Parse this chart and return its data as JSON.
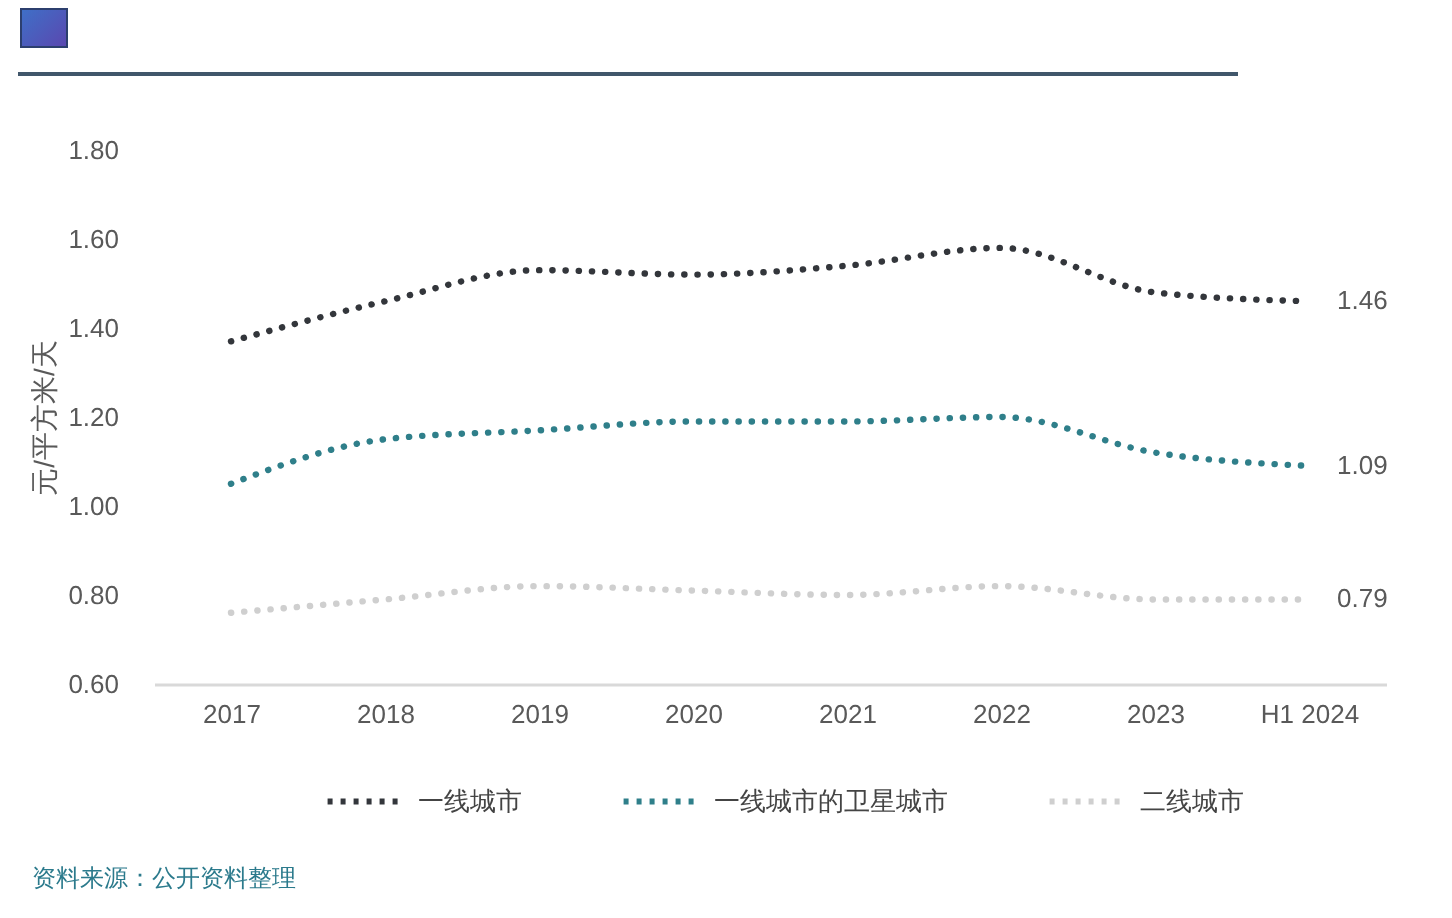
{
  "chart_data": {
    "type": "line",
    "ylabel": "元/平方米/天",
    "categories": [
      "2017",
      "2018",
      "2019",
      "2020",
      "2021",
      "2022",
      "2023",
      "H1 2024"
    ],
    "series": [
      {
        "name": "一线城市",
        "color": "#33363b",
        "values": [
          1.37,
          1.46,
          1.53,
          1.52,
          1.54,
          1.58,
          1.48,
          1.46
        ],
        "value_labels": [
          null,
          null,
          null,
          null,
          null,
          null,
          null,
          "1.46"
        ]
      },
      {
        "name": "一线城市的卫星城市",
        "color": "#2f7f8a",
        "values": [
          1.05,
          1.15,
          1.17,
          1.19,
          1.19,
          1.2,
          1.12,
          1.09
        ],
        "value_labels": [
          null,
          null,
          null,
          null,
          null,
          null,
          null,
          "1.09"
        ]
      },
      {
        "name": "二线城市",
        "color": "#cfcfcf",
        "values": [
          0.76,
          0.79,
          0.82,
          0.81,
          0.8,
          0.82,
          0.79,
          0.79
        ],
        "value_labels": [
          null,
          null,
          null,
          null,
          null,
          null,
          null,
          "0.79"
        ]
      }
    ],
    "ylim": [
      0.6,
      1.8
    ],
    "yticks": [
      {
        "value": 0.6,
        "label": "0.60"
      },
      {
        "value": 0.8,
        "label": "0.80"
      },
      {
        "value": 1.0,
        "label": "1.00"
      },
      {
        "value": 1.2,
        "label": "1.20"
      },
      {
        "value": 1.4,
        "label": "1.40"
      },
      {
        "value": 1.6,
        "label": "1.60"
      },
      {
        "value": 1.8,
        "label": "1.80"
      }
    ],
    "grid": false,
    "legend": "bottom",
    "line_style": "dotted",
    "annotations": [
      "资料来源：公开资料整理"
    ]
  }
}
